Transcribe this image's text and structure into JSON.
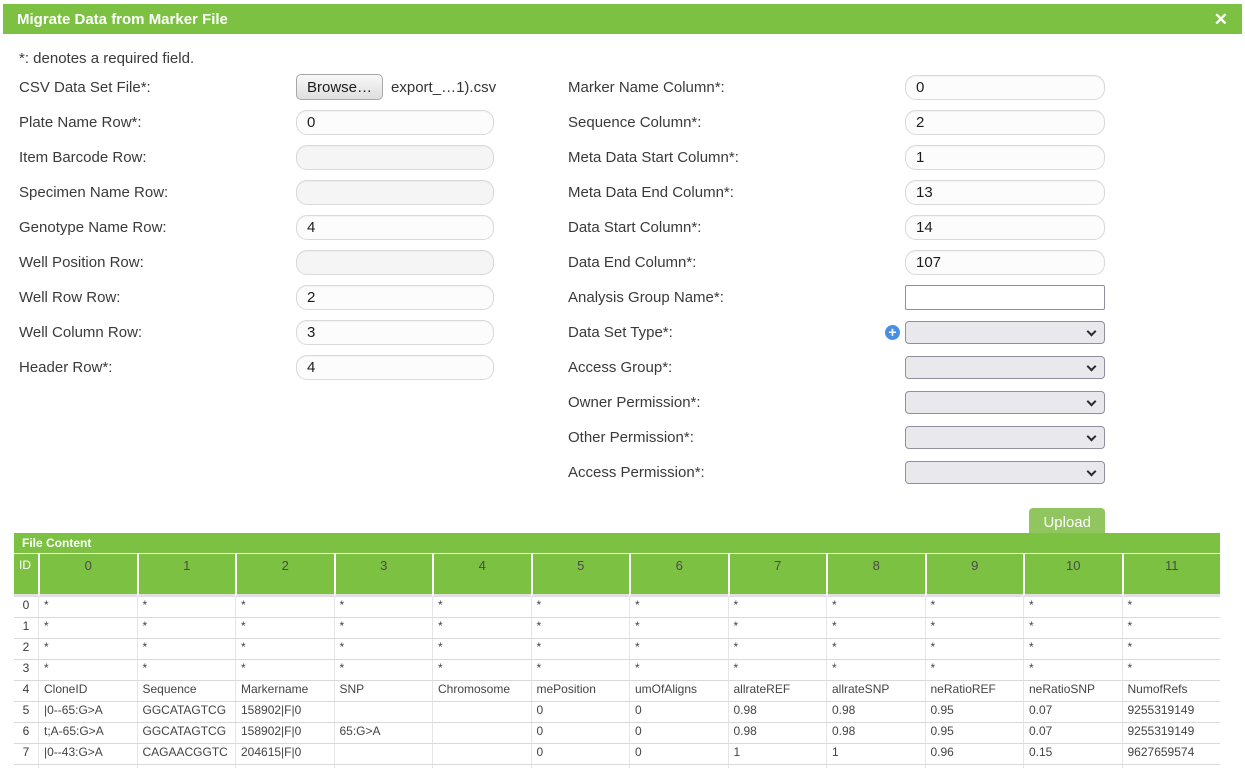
{
  "dialog": {
    "title": "Migrate Data from Marker File",
    "close_icon": "✕"
  },
  "note": "*: denotes a required field.",
  "form": {
    "file": {
      "browse_label": "Browse…",
      "filename": "export_…1).csv"
    },
    "add_icon": "+",
    "upload_label": "Upload",
    "left_fields": [
      {
        "key": "csv-data-set-file",
        "label": "CSV Data Set File*:",
        "type": "file"
      },
      {
        "key": "plate-name-row",
        "label": "Plate Name Row*:",
        "type": "text",
        "value": "0"
      },
      {
        "key": "item-barcode-row",
        "label": "Item Barcode Row:",
        "type": "text",
        "value": ""
      },
      {
        "key": "specimen-name-row",
        "label": "Specimen Name Row:",
        "type": "text",
        "value": ""
      },
      {
        "key": "genotype-name-row",
        "label": "Genotype Name Row:",
        "type": "text",
        "value": "4"
      },
      {
        "key": "well-position-row",
        "label": "Well Position Row:",
        "type": "text",
        "value": ""
      },
      {
        "key": "well-row-row",
        "label": "Well Row Row:",
        "type": "text",
        "value": "2"
      },
      {
        "key": "well-column-row",
        "label": "Well Column Row:",
        "type": "text",
        "value": "3"
      },
      {
        "key": "header-row",
        "label": "Header Row*:",
        "type": "text",
        "value": "4"
      }
    ],
    "right_fields": [
      {
        "key": "marker-name-column",
        "label": "Marker Name Column*:",
        "type": "text",
        "value": "0"
      },
      {
        "key": "sequence-column",
        "label": "Sequence Column*:",
        "type": "text",
        "value": "2"
      },
      {
        "key": "meta-data-start-column",
        "label": "Meta Data Start Column*:",
        "type": "text",
        "value": "1"
      },
      {
        "key": "meta-data-end-column",
        "label": "Meta Data End Column*:",
        "type": "text",
        "value": "13"
      },
      {
        "key": "data-start-column",
        "label": "Data Start Column*:",
        "type": "text",
        "value": "14"
      },
      {
        "key": "data-end-column",
        "label": "Data End Column*:",
        "type": "text",
        "value": "107"
      },
      {
        "key": "analysis-group-name",
        "label": "Analysis Group Name*:",
        "type": "plain",
        "value": ""
      },
      {
        "key": "data-set-type",
        "label": "Data Set Type*:",
        "type": "select",
        "value": "",
        "plus": true
      },
      {
        "key": "access-group",
        "label": "Access Group*:",
        "type": "select",
        "value": ""
      },
      {
        "key": "owner-permission",
        "label": "Owner Permission*:",
        "type": "select",
        "value": ""
      },
      {
        "key": "other-permission",
        "label": "Other Permission*:",
        "type": "select",
        "value": ""
      },
      {
        "key": "access-permission",
        "label": "Access Permission*:",
        "type": "select",
        "value": ""
      }
    ]
  },
  "table": {
    "title": "File Content",
    "id_header": "ID",
    "columns": [
      "0",
      "1",
      "2",
      "3",
      "4",
      "5",
      "6",
      "7",
      "8",
      "9",
      "10",
      "11"
    ],
    "rows": [
      {
        "id": "0",
        "cells": [
          "*",
          "*",
          "*",
          "*",
          "*",
          "*",
          "*",
          "*",
          "*",
          "*",
          "*",
          "*"
        ]
      },
      {
        "id": "1",
        "cells": [
          "*",
          "*",
          "*",
          "*",
          "*",
          "*",
          "*",
          "*",
          "*",
          "*",
          "*",
          "*"
        ]
      },
      {
        "id": "2",
        "cells": [
          "*",
          "*",
          "*",
          "*",
          "*",
          "*",
          "*",
          "*",
          "*",
          "*",
          "*",
          "*"
        ]
      },
      {
        "id": "3",
        "cells": [
          "*",
          "*",
          "*",
          "*",
          "*",
          "*",
          "*",
          "*",
          "*",
          "*",
          "*",
          "*"
        ]
      },
      {
        "id": "4",
        "cells": [
          "CloneID",
          "Sequence",
          "Markername",
          "SNP",
          "Chromosome",
          "mePosition",
          "umOfAligns",
          "allrateREF",
          "allrateSNP",
          "neRatioREF",
          "neRatioSNP",
          "NumofRefs"
        ]
      },
      {
        "id": "5",
        "cells": [
          "|0--65:G>A",
          "GGCATAGTCG",
          "158902|F|0",
          "",
          "",
          "0",
          "0",
          "0.98",
          "0.98",
          "0.95",
          "0.07",
          "9255319149"
        ]
      },
      {
        "id": "6",
        "cells": [
          "t;A-65:G>A",
          "GGCATAGTCG",
          "158902|F|0",
          "65:G>A",
          "",
          "0",
          "0",
          "0.98",
          "0.98",
          "0.95",
          "0.07",
          "9255319149"
        ]
      },
      {
        "id": "7",
        "cells": [
          "|0--43:G>A",
          "CAGAACGGTC",
          "204615|F|0",
          "",
          "",
          "0",
          "0",
          "1",
          "1",
          "0.96",
          "0.15",
          "9627659574"
        ]
      }
    ]
  }
}
